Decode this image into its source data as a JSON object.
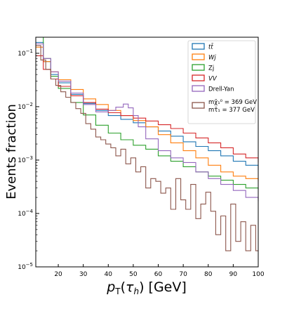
{
  "chart_data": {
    "type": "line",
    "drawstyle": "steps",
    "xlabel": "p_T(τ_h) [GeV]",
    "ylabel": "Events fraction",
    "xlim": [
      11,
      100
    ],
    "ylim": [
      1e-05,
      0.2
    ],
    "yscale": "log",
    "grid": false,
    "legend_placement": "top-right",
    "x_ticks": [
      20,
      30,
      40,
      50,
      60,
      70,
      80,
      90,
      100
    ],
    "y_ticks": [
      1e-05,
      0.0001,
      0.001,
      0.01,
      0.1
    ],
    "y_tick_labels": [
      "10^-5",
      "10^-4",
      "10^-3",
      "10^-2",
      "10^-1"
    ],
    "series": [
      {
        "name": "tt̄",
        "color": "#1f77b4",
        "points": [
          [
            11,
            0.16
          ],
          [
            14,
            0.07
          ],
          [
            17,
            0.04
          ],
          [
            20,
            0.028
          ],
          [
            25,
            0.017
          ],
          [
            30,
            0.0115
          ],
          [
            35,
            0.0085
          ],
          [
            40,
            0.0068
          ],
          [
            45,
            0.0058
          ],
          [
            50,
            0.005
          ],
          [
            55,
            0.0042
          ],
          [
            60,
            0.0035
          ],
          [
            65,
            0.0028
          ],
          [
            70,
            0.0022
          ],
          [
            75,
            0.0018
          ],
          [
            80,
            0.0015
          ],
          [
            85,
            0.0012
          ],
          [
            90,
            0.00095
          ],
          [
            95,
            0.0008
          ],
          [
            100,
            0.00065
          ]
        ]
      },
      {
        "name": "Wj",
        "color": "#ff7f0e",
        "points": [
          [
            11,
            0.13
          ],
          [
            14,
            0.07
          ],
          [
            17,
            0.045
          ],
          [
            20,
            0.032
          ],
          [
            25,
            0.021
          ],
          [
            30,
            0.014
          ],
          [
            35,
            0.011
          ],
          [
            40,
            0.0085
          ],
          [
            45,
            0.0068
          ],
          [
            50,
            0.0055
          ],
          [
            55,
            0.0042
          ],
          [
            60,
            0.003
          ],
          [
            65,
            0.0021
          ],
          [
            70,
            0.0015
          ],
          [
            75,
            0.0011
          ],
          [
            80,
            0.0008
          ],
          [
            85,
            0.0006
          ],
          [
            90,
            0.0005
          ],
          [
            95,
            0.00045
          ],
          [
            100,
            0.0004
          ]
        ]
      },
      {
        "name": "Zj",
        "color": "#2ca02c",
        "points": [
          [
            11,
            0.2
          ],
          [
            14,
            0.08
          ],
          [
            17,
            0.037
          ],
          [
            20,
            0.022
          ],
          [
            25,
            0.012
          ],
          [
            30,
            0.007
          ],
          [
            35,
            0.0045
          ],
          [
            40,
            0.0032
          ],
          [
            45,
            0.0024
          ],
          [
            50,
            0.0019
          ],
          [
            55,
            0.0016
          ],
          [
            60,
            0.0012
          ],
          [
            65,
            0.00095
          ],
          [
            70,
            0.00075
          ],
          [
            75,
            0.0006
          ],
          [
            80,
            0.0005
          ],
          [
            85,
            0.00042
          ],
          [
            90,
            0.00035
          ],
          [
            95,
            0.0003
          ],
          [
            100,
            0.00028
          ]
        ]
      },
      {
        "name": "VV",
        "color": "#d62728",
        "points": [
          [
            11,
            0.09
          ],
          [
            14,
            0.05
          ],
          [
            17,
            0.033
          ],
          [
            20,
            0.024
          ],
          [
            25,
            0.016
          ],
          [
            30,
            0.012
          ],
          [
            35,
            0.009
          ],
          [
            40,
            0.0077
          ],
          [
            45,
            0.0068
          ],
          [
            50,
            0.0061
          ],
          [
            55,
            0.0054
          ],
          [
            60,
            0.0046
          ],
          [
            65,
            0.0039
          ],
          [
            70,
            0.0032
          ],
          [
            75,
            0.0026
          ],
          [
            80,
            0.0021
          ],
          [
            85,
            0.0017
          ],
          [
            90,
            0.0013
          ],
          [
            95,
            0.0011
          ],
          [
            100,
            0.0009
          ]
        ]
      },
      {
        "name": "Drell-Yan",
        "color": "#9467bd",
        "points": [
          [
            11,
            0.15
          ],
          [
            14,
            0.08
          ],
          [
            17,
            0.045
          ],
          [
            20,
            0.03
          ],
          [
            25,
            0.018
          ],
          [
            30,
            0.011
          ],
          [
            35,
            0.008
          ],
          [
            40,
            0.0085
          ],
          [
            43,
            0.0098
          ],
          [
            46,
            0.0112
          ],
          [
            48,
            0.0095
          ],
          [
            50,
            0.0068
          ],
          [
            52,
            0.0042
          ],
          [
            55,
            0.0025
          ],
          [
            60,
            0.0015
          ],
          [
            65,
            0.0011
          ],
          [
            70,
            0.0009
          ],
          [
            75,
            0.0006
          ],
          [
            80,
            0.00045
          ],
          [
            85,
            0.00035
          ],
          [
            90,
            0.00027
          ],
          [
            95,
            0.0002
          ],
          [
            100,
            0.00017
          ]
        ]
      },
      {
        "name": "m_{χ̃₁⁰} = 369 GeV, m_{τ̃₁} = 377 GeV",
        "color": "#8c564b",
        "points": [
          [
            11,
            0.14
          ],
          [
            13,
            0.075
          ],
          [
            15,
            0.05
          ],
          [
            17,
            0.033
          ],
          [
            19,
            0.025
          ],
          [
            21,
            0.019
          ],
          [
            23,
            0.015
          ],
          [
            25,
            0.012
          ],
          [
            27,
            0.0092
          ],
          [
            29,
            0.0075
          ],
          [
            31,
            0.0048
          ],
          [
            33,
            0.0038
          ],
          [
            35,
            0.0027
          ],
          [
            37,
            0.0024
          ],
          [
            39,
            0.002
          ],
          [
            41,
            0.0017
          ],
          [
            43,
            0.0012
          ],
          [
            45,
            0.0016
          ],
          [
            47,
            0.00085
          ],
          [
            49,
            0.0011
          ],
          [
            51,
            0.0006
          ],
          [
            53,
            0.00075
          ],
          [
            55,
            0.0003
          ],
          [
            57,
            0.00045
          ],
          [
            59,
            0.0004
          ],
          [
            61,
            0.00024
          ],
          [
            63,
            0.0003
          ],
          [
            65,
            0.00012
          ],
          [
            67,
            0.00045
          ],
          [
            69,
            0.00018
          ],
          [
            71,
            0.00012
          ],
          [
            73,
            0.00035
          ],
          [
            75,
            8e-05
          ],
          [
            77,
            0.00015
          ],
          [
            79,
            0.00025
          ],
          [
            81,
            0.00011
          ],
          [
            83,
            4e-05
          ],
          [
            85,
            9e-05
          ],
          [
            87,
            2e-05
          ],
          [
            89,
            0.00015
          ],
          [
            91,
            3e-05
          ],
          [
            93,
            7e-05
          ],
          [
            95,
            2e-05
          ],
          [
            97,
            6e-05
          ],
          [
            99,
            2e-05
          ]
        ]
      }
    ]
  }
}
